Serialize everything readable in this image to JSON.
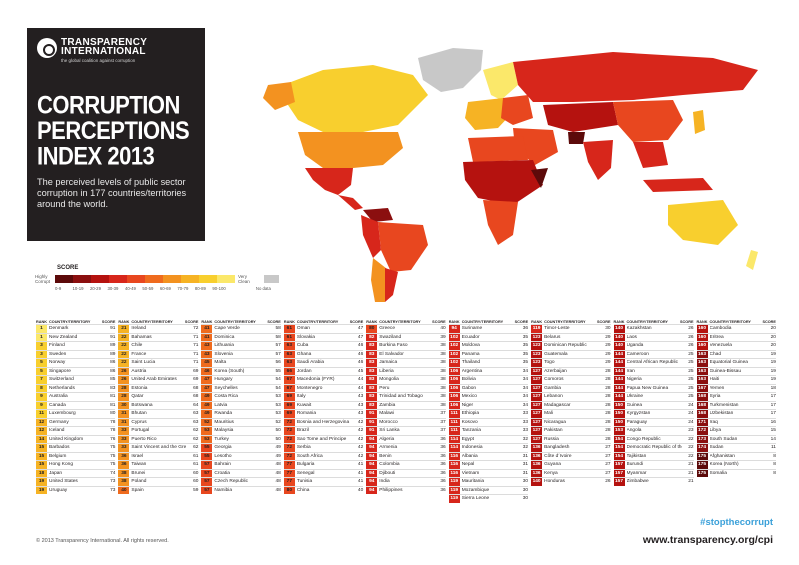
{
  "brand": {
    "name_line1": "TRANSPARENCY",
    "name_line2": "INTERNATIONAL",
    "tagline": "the global coalition against corruption"
  },
  "title_lines": [
    "CORRUPTION",
    "PERCEPTIONS",
    "INDEX 2013"
  ],
  "subtitle": "The perceived levels of public sector corruption in 177 countries/territories around the world.",
  "legend": {
    "title": "SCORE",
    "low_label": "Highly Corrupt",
    "high_label": "Very Clean",
    "no_data": "No data",
    "bins": [
      "0-9",
      "10-19",
      "20-29",
      "30-39",
      "40-49",
      "50-59",
      "60-69",
      "70-79",
      "80-89",
      "90-100"
    ],
    "colors": [
      "#5c0a0a",
      "#8b0f0f",
      "#b5120f",
      "#d7261b",
      "#e8471f",
      "#ef6b1e",
      "#f39220",
      "#f6b324",
      "#f8cf2e",
      "#fbe86a"
    ],
    "no_data_color": "#c8c8c8"
  },
  "map_colors": {
    "ocean": "#ffffff",
    "no_data": "#c8c8c8"
  },
  "table_header": {
    "rank": "RANK",
    "country": "COUNTRY/TERRITORY",
    "score": "SCORE"
  },
  "columns": [
    [
      [
        "1",
        "Denmark",
        "91"
      ],
      [
        "1",
        "New Zealand",
        "91"
      ],
      [
        "3",
        "Finland",
        "89"
      ],
      [
        "3",
        "Sweden",
        "89"
      ],
      [
        "5",
        "Norway",
        "86"
      ],
      [
        "5",
        "Singapore",
        "86"
      ],
      [
        "7",
        "Switzerland",
        "85"
      ],
      [
        "8",
        "Netherlands",
        "83"
      ],
      [
        "9",
        "Australia",
        "81"
      ],
      [
        "9",
        "Canada",
        "81"
      ],
      [
        "11",
        "Luxembourg",
        "80"
      ],
      [
        "12",
        "Germany",
        "78"
      ],
      [
        "12",
        "Iceland",
        "78"
      ],
      [
        "14",
        "United Kingdom",
        "76"
      ],
      [
        "15",
        "Barbados",
        "75"
      ],
      [
        "15",
        "Belgium",
        "75"
      ],
      [
        "15",
        "Hong Kong",
        "75"
      ],
      [
        "18",
        "Japan",
        "74"
      ],
      [
        "19",
        "United States",
        "73"
      ],
      [
        "19",
        "Uruguay",
        "73"
      ]
    ],
    [
      [
        "21",
        "Ireland",
        "72"
      ],
      [
        "22",
        "Bahamas",
        "71"
      ],
      [
        "22",
        "Chile",
        "71"
      ],
      [
        "22",
        "France",
        "71"
      ],
      [
        "22",
        "Saint Lucia",
        "71"
      ],
      [
        "26",
        "Austria",
        "69"
      ],
      [
        "26",
        "United Arab Emirates",
        "69"
      ],
      [
        "28",
        "Estonia",
        "68"
      ],
      [
        "28",
        "Qatar",
        "68"
      ],
      [
        "30",
        "Botswana",
        "64"
      ],
      [
        "31",
        "Bhutan",
        "63"
      ],
      [
        "31",
        "Cyprus",
        "63"
      ],
      [
        "33",
        "Portugal",
        "62"
      ],
      [
        "33",
        "Puerto Rico",
        "62"
      ],
      [
        "33",
        "Saint Vincent and the Grenadines",
        "62"
      ],
      [
        "36",
        "Israel",
        "61"
      ],
      [
        "36",
        "Taiwan",
        "61"
      ],
      [
        "38",
        "Brunei",
        "60"
      ],
      [
        "38",
        "Poland",
        "60"
      ],
      [
        "40",
        "Spain",
        "59"
      ]
    ],
    [
      [
        "41",
        "Cape Verde",
        "58"
      ],
      [
        "41",
        "Dominica",
        "58"
      ],
      [
        "43",
        "Lithuania",
        "57"
      ],
      [
        "43",
        "Slovenia",
        "57"
      ],
      [
        "45",
        "Malta",
        "56"
      ],
      [
        "46",
        "Korea (South)",
        "55"
      ],
      [
        "47",
        "Hungary",
        "54"
      ],
      [
        "47",
        "Seychelles",
        "54"
      ],
      [
        "49",
        "Costa Rica",
        "53"
      ],
      [
        "49",
        "Latvia",
        "53"
      ],
      [
        "49",
        "Rwanda",
        "53"
      ],
      [
        "52",
        "Mauritius",
        "52"
      ],
      [
        "53",
        "Malaysia",
        "50"
      ],
      [
        "53",
        "Turkey",
        "50"
      ],
      [
        "55",
        "Georgia",
        "49"
      ],
      [
        "55",
        "Lesotho",
        "49"
      ],
      [
        "57",
        "Bahrain",
        "48"
      ],
      [
        "57",
        "Croatia",
        "48"
      ],
      [
        "57",
        "Czech Republic",
        "48"
      ],
      [
        "57",
        "Namibia",
        "48"
      ]
    ],
    [
      [
        "61",
        "Oman",
        "47"
      ],
      [
        "61",
        "Slovakia",
        "47"
      ],
      [
        "63",
        "Cuba",
        "46"
      ],
      [
        "63",
        "Ghana",
        "46"
      ],
      [
        "63",
        "Saudi Arabia",
        "46"
      ],
      [
        "66",
        "Jordan",
        "45"
      ],
      [
        "67",
        "Macedonia (FYR)",
        "44"
      ],
      [
        "67",
        "Montenegro",
        "44"
      ],
      [
        "69",
        "Italy",
        "43"
      ],
      [
        "69",
        "Kuwait",
        "43"
      ],
      [
        "69",
        "Romania",
        "43"
      ],
      [
        "72",
        "Bosnia and Herzegovina",
        "42"
      ],
      [
        "72",
        "Brazil",
        "42"
      ],
      [
        "72",
        "Sao Tome and Principe",
        "42"
      ],
      [
        "72",
        "Serbia",
        "42"
      ],
      [
        "72",
        "South Africa",
        "42"
      ],
      [
        "77",
        "Bulgaria",
        "41"
      ],
      [
        "77",
        "Senegal",
        "41"
      ],
      [
        "77",
        "Tunisia",
        "41"
      ],
      [
        "80",
        "China",
        "40"
      ]
    ],
    [
      [
        "80",
        "Greece",
        "40"
      ],
      [
        "82",
        "Swaziland",
        "39"
      ],
      [
        "83",
        "Burkina Faso",
        "38"
      ],
      [
        "83",
        "El Salvador",
        "38"
      ],
      [
        "83",
        "Jamaica",
        "38"
      ],
      [
        "83",
        "Liberia",
        "38"
      ],
      [
        "83",
        "Mongolia",
        "38"
      ],
      [
        "83",
        "Peru",
        "38"
      ],
      [
        "83",
        "Trinidad and Tobago",
        "38"
      ],
      [
        "83",
        "Zambia",
        "38"
      ],
      [
        "91",
        "Malawi",
        "37"
      ],
      [
        "91",
        "Morocco",
        "37"
      ],
      [
        "91",
        "Sri Lanka",
        "37"
      ],
      [
        "94",
        "Algeria",
        "36"
      ],
      [
        "94",
        "Armenia",
        "36"
      ],
      [
        "94",
        "Benin",
        "36"
      ],
      [
        "94",
        "Colombia",
        "36"
      ],
      [
        "94",
        "Djibouti",
        "36"
      ],
      [
        "94",
        "India",
        "36"
      ],
      [
        "94",
        "Philippines",
        "36"
      ]
    ],
    [
      [
        "94",
        "Suriname",
        "36"
      ],
      [
        "102",
        "Ecuador",
        "35"
      ],
      [
        "102",
        "Moldova",
        "35"
      ],
      [
        "102",
        "Panama",
        "35"
      ],
      [
        "102",
        "Thailand",
        "35"
      ],
      [
        "106",
        "Argentina",
        "34"
      ],
      [
        "106",
        "Bolivia",
        "34"
      ],
      [
        "106",
        "Gabon",
        "34"
      ],
      [
        "106",
        "Mexico",
        "34"
      ],
      [
        "106",
        "Niger",
        "34"
      ],
      [
        "111",
        "Ethiopia",
        "33"
      ],
      [
        "111",
        "Kosovo",
        "33"
      ],
      [
        "111",
        "Tanzania",
        "33"
      ],
      [
        "114",
        "Egypt",
        "32"
      ],
      [
        "114",
        "Indonesia",
        "32"
      ],
      [
        "116",
        "Albania",
        "31"
      ],
      [
        "116",
        "Nepal",
        "31"
      ],
      [
        "116",
        "Vietnam",
        "31"
      ],
      [
        "119",
        "Mauritania",
        "30"
      ],
      [
        "119",
        "Mozambique",
        "30"
      ],
      [
        "119",
        "Sierra Leone",
        "30"
      ]
    ],
    [
      [
        "119",
        "Timor-Leste",
        "30"
      ],
      [
        "123",
        "Belarus",
        "29"
      ],
      [
        "123",
        "Dominican Republic",
        "29"
      ],
      [
        "123",
        "Guatemala",
        "29"
      ],
      [
        "123",
        "Togo",
        "29"
      ],
      [
        "127",
        "Azerbaijan",
        "28"
      ],
      [
        "127",
        "Comoros",
        "28"
      ],
      [
        "127",
        "Gambia",
        "28"
      ],
      [
        "127",
        "Lebanon",
        "28"
      ],
      [
        "127",
        "Madagascar",
        "28"
      ],
      [
        "127",
        "Mali",
        "28"
      ],
      [
        "127",
        "Nicaragua",
        "28"
      ],
      [
        "127",
        "Pakistan",
        "28"
      ],
      [
        "127",
        "Russia",
        "28"
      ],
      [
        "136",
        "Bangladesh",
        "27"
      ],
      [
        "136",
        "Côte d´Ivoire",
        "27"
      ],
      [
        "136",
        "Guyana",
        "27"
      ],
      [
        "136",
        "Kenya",
        "27"
      ],
      [
        "140",
        "Honduras",
        "26"
      ]
    ],
    [
      [
        "140",
        "Kazakhstan",
        "26"
      ],
      [
        "140",
        "Laos",
        "26"
      ],
      [
        "140",
        "Uganda",
        "26"
      ],
      [
        "144",
        "Cameroon",
        "25"
      ],
      [
        "144",
        "Central African Republic",
        "25"
      ],
      [
        "144",
        "Iran",
        "25"
      ],
      [
        "144",
        "Nigeria",
        "25"
      ],
      [
        "144",
        "Papua New Guinea",
        "25"
      ],
      [
        "144",
        "Ukraine",
        "25"
      ],
      [
        "150",
        "Guinea",
        "24"
      ],
      [
        "150",
        "Kyrgyzstan",
        "24"
      ],
      [
        "150",
        "Paraguay",
        "24"
      ],
      [
        "153",
        "Angola",
        "23"
      ],
      [
        "154",
        "Congo Republic",
        "22"
      ],
      [
        "154",
        "Democratic Republic of the Congo",
        "22"
      ],
      [
        "154",
        "Tajikistan",
        "22"
      ],
      [
        "157",
        "Burundi",
        "21"
      ],
      [
        "157",
        "Myanmar",
        "21"
      ],
      [
        "157",
        "Zimbabwe",
        "21"
      ]
    ],
    [
      [
        "160",
        "Cambodia",
        "20"
      ],
      [
        "160",
        "Eritrea",
        "20"
      ],
      [
        "160",
        "Venezuela",
        "20"
      ],
      [
        "163",
        "Chad",
        "19"
      ],
      [
        "163",
        "Equatorial Guinea",
        "19"
      ],
      [
        "163",
        "Guinea-Bissau",
        "19"
      ],
      [
        "163",
        "Haiti",
        "19"
      ],
      [
        "167",
        "Yemen",
        "18"
      ],
      [
        "168",
        "Syria",
        "17"
      ],
      [
        "168",
        "Turkmenistan",
        "17"
      ],
      [
        "168",
        "Uzbekistan",
        "17"
      ],
      [
        "171",
        "Iraq",
        "16"
      ],
      [
        "172",
        "Libya",
        "15"
      ],
      [
        "173",
        "South Sudan",
        "14"
      ],
      [
        "174",
        "Sudan",
        "11"
      ],
      [
        "175",
        "Afghanistan",
        "8"
      ],
      [
        "175",
        "Korea (North)",
        "8"
      ],
      [
        "175",
        "Somalia",
        "8"
      ]
    ]
  ],
  "footer": {
    "copyright": "© 2013 Transparency International. All rights reserved.",
    "hashtag": "#stopthecorrupt",
    "website": "www.transparency.org/cpi"
  }
}
